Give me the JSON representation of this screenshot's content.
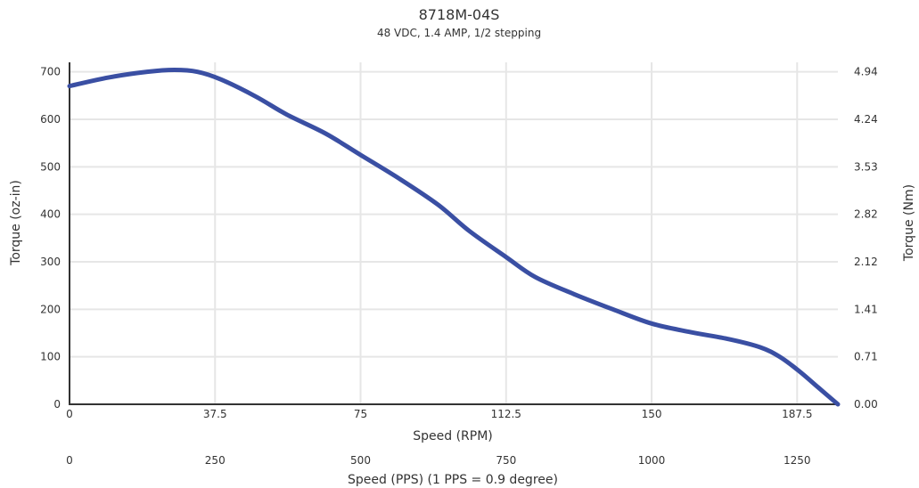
{
  "chart_data": {
    "type": "line",
    "title": "8718M-04S",
    "subtitle": "48 VDC, 1.4 AMP, 1/2 stepping",
    "xlabel": "Speed (RPM)",
    "x2label": "Speed (PPS) (1 PPS = 0.9 degree)",
    "ylabel": "Torque (oz-in)",
    "y2label": "Torque (Nm)",
    "xlim": [
      0,
      198
    ],
    "ylim": [
      0,
      720
    ],
    "x_ticks": [
      0,
      37.5,
      75,
      112.5,
      150,
      187.5
    ],
    "x_tick_labels": [
      "0",
      "37.5",
      "75",
      "112.5",
      "150",
      "187.5"
    ],
    "x2_ticks": [
      0,
      37.5,
      75,
      112.5,
      150,
      187.5
    ],
    "x2_tick_labels": [
      "0",
      "250",
      "500",
      "750",
      "1000",
      "1250"
    ],
    "y_ticks": [
      0,
      100,
      200,
      300,
      400,
      500,
      600,
      700
    ],
    "y_tick_labels": [
      "0",
      "100",
      "200",
      "300",
      "400",
      "500",
      "600",
      "700"
    ],
    "y2_tick_labels": [
      "0.00",
      "0.71",
      "1.41",
      "2.12",
      "2.82",
      "3.53",
      "4.24",
      "4.94"
    ],
    "grid": true,
    "line_color": "#3a4fa3",
    "grid_color": "#e6e6e6",
    "axis_color": "#333333",
    "series": [
      {
        "x": [
          0,
          10,
          20,
          27,
          33,
          39,
          48,
          56,
          66,
          75,
          85,
          95,
          103,
          112.5,
          120,
          130,
          140,
          150,
          160,
          170,
          178,
          183,
          188,
          193,
          198
        ],
        "y": [
          670,
          688,
          700,
          704,
          700,
          684,
          648,
          610,
          570,
          525,
          475,
          420,
          365,
          310,
          268,
          232,
          200,
          170,
          152,
          137,
          120,
          100,
          70,
          35,
          0
        ]
      }
    ]
  }
}
